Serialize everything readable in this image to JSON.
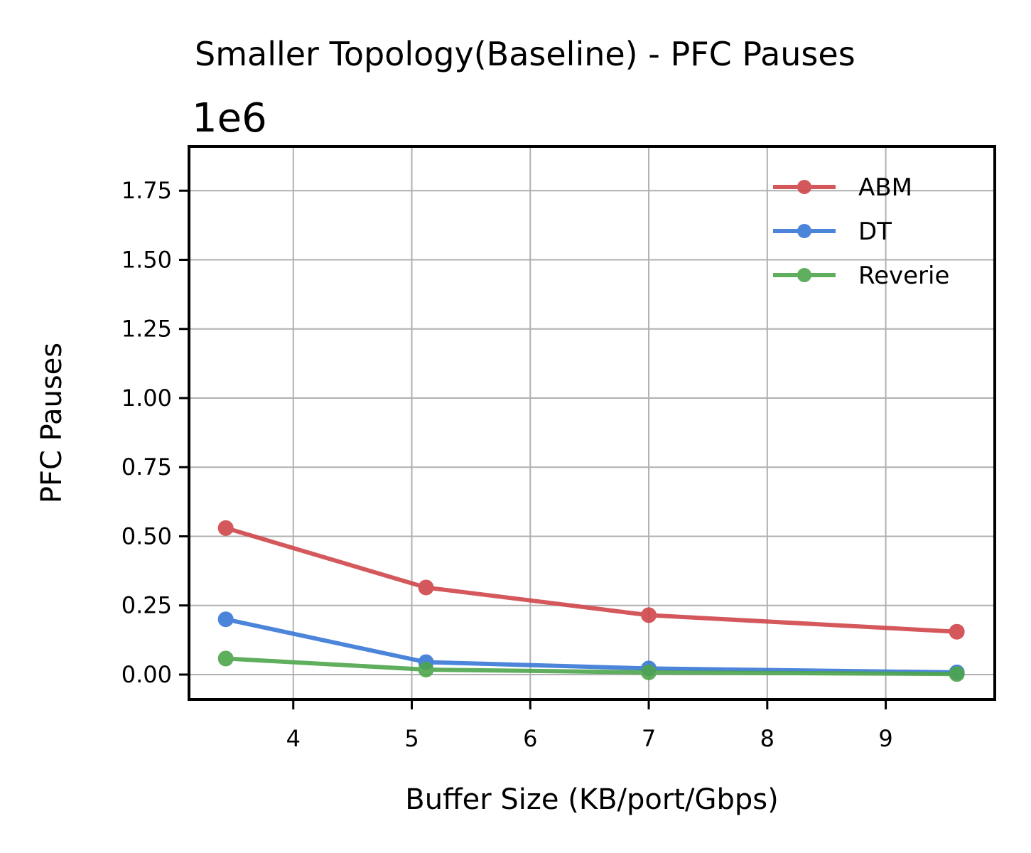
{
  "chart_data": {
    "type": "line",
    "title": "Smaller Topology(Baseline) - PFC Pauses",
    "xlabel": "Buffer Size (KB/port/Gbps)",
    "ylabel": "PFC Pauses",
    "y_offset_label": "1e6",
    "xlim": [
      3.12,
      9.92
    ],
    "ylim": [
      -0.09,
      1.91
    ],
    "x_ticks": [
      4,
      5,
      6,
      7,
      8,
      9
    ],
    "x_tick_labels": [
      "4",
      "5",
      "6",
      "7",
      "8",
      "9"
    ],
    "y_ticks": [
      0.0,
      0.25,
      0.5,
      0.75,
      1.0,
      1.25,
      1.5,
      1.75
    ],
    "y_tick_labels": [
      "0.00",
      "0.25",
      "0.50",
      "0.75",
      "1.00",
      "1.25",
      "1.50",
      "1.75"
    ],
    "grid": true,
    "legend_position": "top-right",
    "x": [
      3.43,
      5.12,
      7.0,
      9.6
    ],
    "series": [
      {
        "name": "ABM",
        "color": "#d0474a",
        "values": [
          0.53,
          0.315,
          0.215,
          0.155
        ]
      },
      {
        "name": "DT",
        "color": "#3878d6",
        "values": [
          0.2,
          0.045,
          0.022,
          0.008
        ]
      },
      {
        "name": "Reverie",
        "color": "#4ea64c",
        "values": [
          0.058,
          0.018,
          0.008,
          0.002
        ]
      }
    ]
  }
}
